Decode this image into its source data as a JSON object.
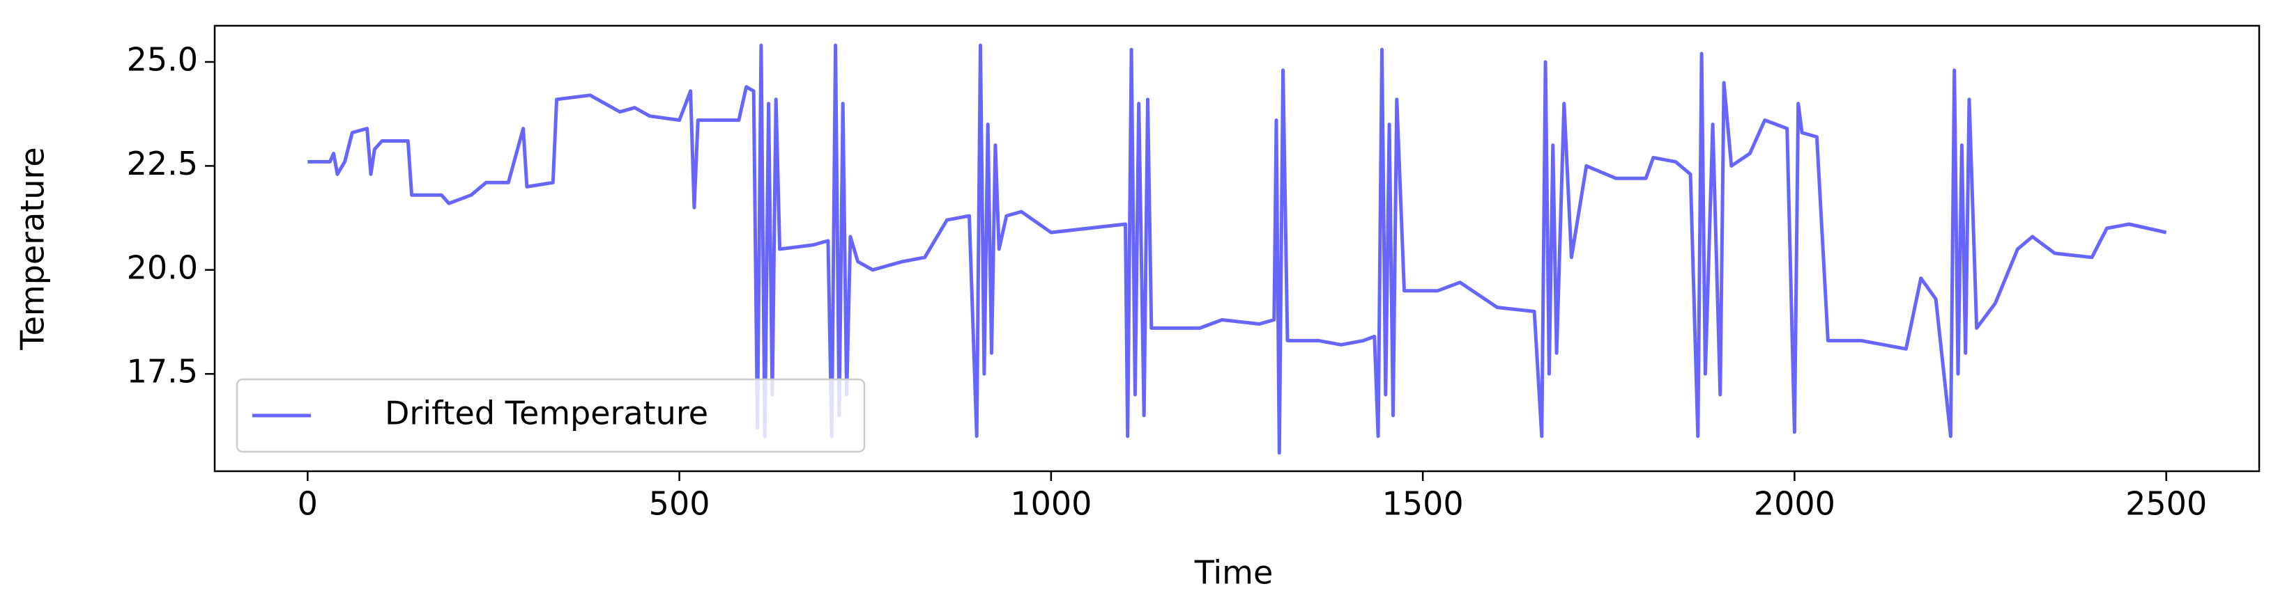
{
  "chart_data": {
    "type": "line",
    "xlabel": "Time",
    "ylabel": "Temperature",
    "xlim": [
      -125,
      2625
    ],
    "ylim": [
      15.16,
      25.87
    ],
    "xticks": [
      0,
      500,
      1000,
      1500,
      2000,
      2500
    ],
    "yticks": [
      17.5,
      {
        "value": 20,
        "label": "20.0"
      },
      22.5,
      {
        "value": 25,
        "label": "25.0"
      }
    ],
    "legend": "lower left",
    "x": [
      0,
      30,
      35,
      40,
      50,
      60,
      80,
      85,
      90,
      100,
      135,
      140,
      180,
      190,
      220,
      240,
      270,
      290,
      295,
      330,
      335,
      380,
      420,
      440,
      460,
      500,
      515,
      520,
      525,
      580,
      590,
      600,
      605,
      610,
      615,
      620,
      625,
      630,
      635,
      680,
      700,
      705,
      710,
      715,
      720,
      725,
      730,
      740,
      760,
      800,
      830,
      860,
      890,
      900,
      905,
      910,
      915,
      920,
      925,
      930,
      940,
      960,
      1000,
      1050,
      1100,
      1103,
      1108,
      1113,
      1118,
      1125,
      1130,
      1135,
      1160,
      1200,
      1230,
      1280,
      1300,
      1303,
      1307,
      1312,
      1318,
      1360,
      1390,
      1420,
      1435,
      1440,
      1445,
      1450,
      1455,
      1460,
      1465,
      1475,
      1520,
      1550,
      1600,
      1650,
      1660,
      1665,
      1670,
      1675,
      1680,
      1690,
      1700,
      1720,
      1760,
      1800,
      1810,
      1840,
      1860,
      1870,
      1875,
      1880,
      1890,
      1900,
      1905,
      1915,
      1940,
      1960,
      1990,
      2000,
      2005,
      2010,
      2030,
      2045,
      2090,
      2120,
      2150,
      2170,
      2190,
      2210,
      2215,
      2220,
      2225,
      2230,
      2235,
      2245,
      2270,
      2300,
      2320,
      2350,
      2400,
      2420,
      2450,
      2500
    ],
    "series": [
      {
        "name": "Drifted Temperature",
        "color": "#6666ff",
        "values": [
          22.6,
          22.6,
          22.8,
          22.3,
          22.6,
          23.3,
          23.4,
          22.3,
          22.9,
          23.1,
          23.1,
          21.8,
          21.8,
          21.6,
          21.8,
          22.1,
          22.1,
          23.4,
          22.0,
          22.1,
          24.1,
          24.2,
          23.8,
          23.9,
          23.7,
          23.6,
          24.3,
          21.5,
          23.6,
          23.6,
          24.4,
          24.3,
          16.2,
          25.4,
          16.0,
          24.0,
          17.0,
          24.1,
          20.5,
          20.6,
          20.7,
          16.0,
          25.4,
          16.5,
          24.0,
          17.0,
          20.8,
          20.2,
          20.0,
          20.2,
          20.3,
          21.2,
          21.3,
          16.0,
          25.4,
          17.5,
          23.5,
          18.0,
          23.0,
          20.5,
          21.3,
          21.4,
          20.9,
          21.0,
          21.1,
          16.0,
          25.3,
          17.0,
          24.0,
          16.5,
          24.1,
          18.6,
          18.6,
          18.6,
          18.8,
          18.7,
          18.8,
          23.6,
          15.6,
          24.8,
          18.3,
          18.3,
          18.2,
          18.3,
          18.4,
          16.0,
          25.3,
          17.0,
          23.5,
          16.5,
          24.1,
          19.5,
          19.5,
          19.7,
          19.1,
          19.0,
          16.0,
          25.0,
          17.5,
          23.0,
          18.0,
          24.0,
          20.3,
          22.5,
          22.2,
          22.2,
          22.7,
          22.6,
          22.3,
          16.0,
          25.2,
          17.5,
          23.5,
          17.0,
          24.5,
          22.5,
          22.8,
          23.6,
          23.4,
          16.1,
          24.0,
          23.3,
          23.2,
          18.3,
          18.3,
          18.2,
          18.1,
          19.8,
          19.3,
          16.0,
          24.8,
          17.5,
          23.0,
          18.0,
          24.1,
          18.6,
          19.2,
          20.5,
          20.8,
          20.4,
          20.3,
          21.0,
          21.1,
          20.9
        ]
      }
    ]
  }
}
